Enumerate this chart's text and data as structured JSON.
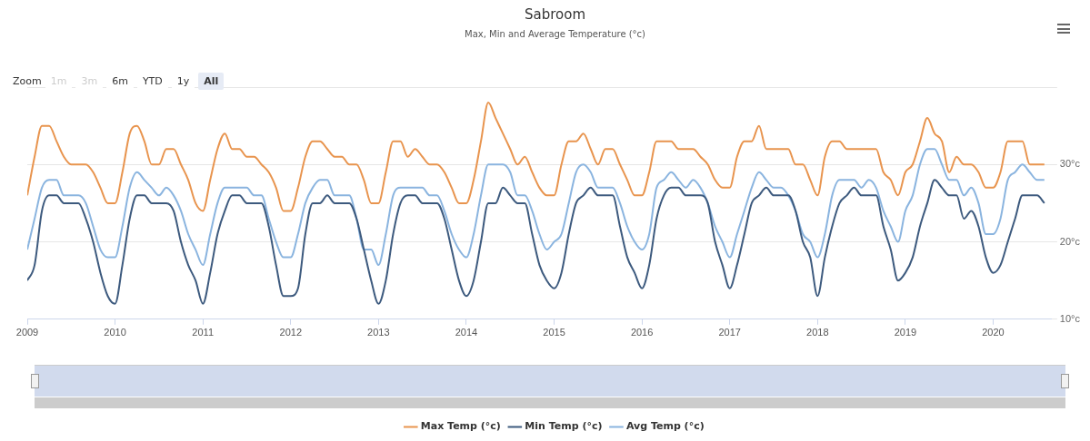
{
  "chart_data": {
    "type": "line",
    "title": "Sabroom",
    "subtitle": "Max, Min and Average Temperature (°c)",
    "annotations": [
      "Zoom",
      "1m",
      "3m",
      "6m",
      "YTD",
      "1y",
      "All"
    ],
    "x": [
      "2009-01",
      "2009-02",
      "2009-03",
      "2009-04",
      "2009-05",
      "2009-06",
      "2009-07",
      "2009-08",
      "2009-09",
      "2009-10",
      "2009-11",
      "2009-12",
      "2010-01",
      "2010-02",
      "2010-03",
      "2010-04",
      "2010-05",
      "2010-06",
      "2010-07",
      "2010-08",
      "2010-09",
      "2010-10",
      "2010-11",
      "2010-12",
      "2011-01",
      "2011-02",
      "2011-03",
      "2011-04",
      "2011-05",
      "2011-06",
      "2011-07",
      "2011-08",
      "2011-09",
      "2011-10",
      "2011-11",
      "2011-12",
      "2012-01",
      "2012-02",
      "2012-03",
      "2012-04",
      "2012-05",
      "2012-06",
      "2012-07",
      "2012-08",
      "2012-09",
      "2012-10",
      "2012-11",
      "2012-12",
      "2013-01",
      "2013-02",
      "2013-03",
      "2013-04",
      "2013-05",
      "2013-06",
      "2013-07",
      "2013-08",
      "2013-09",
      "2013-10",
      "2013-11",
      "2013-12",
      "2014-01",
      "2014-02",
      "2014-03",
      "2014-04",
      "2014-05",
      "2014-06",
      "2014-07",
      "2014-08",
      "2014-09",
      "2014-10",
      "2014-11",
      "2014-12",
      "2015-01",
      "2015-02",
      "2015-03",
      "2015-04",
      "2015-05",
      "2015-06",
      "2015-07",
      "2015-08",
      "2015-09",
      "2015-10",
      "2015-11",
      "2015-12",
      "2016-01",
      "2016-02",
      "2016-03",
      "2016-04",
      "2016-05",
      "2016-06",
      "2016-07",
      "2016-08",
      "2016-09",
      "2016-10",
      "2016-11",
      "2016-12",
      "2017-01",
      "2017-02",
      "2017-03",
      "2017-04",
      "2017-05",
      "2017-06",
      "2017-07",
      "2017-08",
      "2017-09",
      "2017-10",
      "2017-11",
      "2017-12",
      "2018-01",
      "2018-02",
      "2018-03",
      "2018-04",
      "2018-05",
      "2018-06",
      "2018-07",
      "2018-08",
      "2018-09",
      "2018-10",
      "2018-11",
      "2018-12",
      "2019-01",
      "2019-02",
      "2019-03",
      "2019-04",
      "2019-05",
      "2019-06",
      "2019-07",
      "2019-08",
      "2019-09",
      "2019-10",
      "2019-11",
      "2019-12",
      "2020-01",
      "2020-02",
      "2020-03",
      "2020-04",
      "2020-05",
      "2020-06",
      "2020-07",
      "2020-08"
    ],
    "series": [
      {
        "name": "Max Temp (°c)",
        "color": "#e8944e",
        "values": [
          26,
          31,
          35,
          35,
          33,
          31,
          30,
          30,
          30,
          29,
          27,
          25,
          25,
          29,
          34,
          35,
          33,
          30,
          30,
          32,
          32,
          30,
          28,
          25,
          24,
          28,
          32,
          34,
          32,
          32,
          31,
          31,
          30,
          29,
          27,
          24,
          24,
          27,
          31,
          33,
          33,
          32,
          31,
          31,
          30,
          30,
          28,
          25,
          25,
          29,
          33,
          33,
          31,
          32,
          31,
          30,
          30,
          29,
          27,
          25,
          25,
          28,
          33,
          38,
          36,
          34,
          32,
          30,
          31,
          29,
          27,
          26,
          26,
          30,
          33,
          33,
          34,
          32,
          30,
          32,
          32,
          30,
          28,
          26,
          26,
          29,
          33,
          33,
          33,
          32,
          32,
          32,
          31,
          30,
          28,
          27,
          27,
          31,
          33,
          33,
          35,
          32,
          32,
          32,
          32,
          30,
          30,
          28,
          26,
          31,
          33,
          33,
          32,
          32,
          32,
          32,
          32,
          29,
          28,
          26,
          29,
          30,
          33,
          36,
          34,
          33,
          29,
          31,
          30,
          30,
          29,
          27,
          27,
          29,
          33,
          33,
          33,
          30,
          30,
          30
        ]
      },
      {
        "name": "Min Temp (°c)",
        "color": "#3d5a7e",
        "values": [
          15,
          17,
          24,
          26,
          26,
          25,
          25,
          25,
          23,
          20,
          16,
          13,
          12,
          17,
          23,
          26,
          26,
          25,
          25,
          25,
          24,
          20,
          17,
          15,
          12,
          16,
          21,
          24,
          26,
          26,
          25,
          25,
          25,
          22,
          17,
          13,
          13,
          14,
          21,
          25,
          25,
          26,
          25,
          25,
          25,
          23,
          19,
          15,
          12,
          15,
          21,
          25,
          26,
          26,
          25,
          25,
          25,
          23,
          19,
          15,
          13,
          15,
          20,
          25,
          25,
          27,
          26,
          25,
          25,
          21,
          17,
          15,
          14,
          16,
          21,
          25,
          26,
          27,
          26,
          26,
          26,
          22,
          18,
          16,
          14,
          17,
          23,
          26,
          27,
          27,
          26,
          26,
          26,
          25,
          20,
          17,
          14,
          17,
          21,
          25,
          26,
          27,
          26,
          26,
          26,
          24,
          20,
          18,
          13,
          18,
          22,
          25,
          26,
          27,
          26,
          26,
          26,
          22,
          19,
          15,
          16,
          18,
          22,
          25,
          28,
          27,
          26,
          26,
          23,
          24,
          22,
          18,
          16,
          17,
          20,
          23,
          26,
          26,
          26,
          25
        ]
      },
      {
        "name": "Avg Temp (°c)",
        "color": "#8ab4df",
        "values": [
          19,
          23,
          27,
          28,
          28,
          26,
          26,
          26,
          25,
          22,
          19,
          18,
          18,
          22,
          27,
          29,
          28,
          27,
          26,
          27,
          26,
          24,
          21,
          19,
          17,
          21,
          25,
          27,
          27,
          27,
          27,
          26,
          26,
          23,
          20,
          18,
          18,
          21,
          25,
          27,
          28,
          28,
          26,
          26,
          26,
          23,
          19,
          19,
          17,
          21,
          26,
          27,
          27,
          27,
          27,
          26,
          26,
          24,
          21,
          19,
          18,
          21,
          26,
          30,
          30,
          30,
          29,
          26,
          26,
          24,
          21,
          19,
          20,
          21,
          25,
          29,
          30,
          29,
          27,
          27,
          27,
          25,
          22,
          20,
          19,
          21,
          27,
          28,
          29,
          28,
          27,
          28,
          27,
          25,
          22,
          20,
          18,
          21,
          24,
          27,
          29,
          28,
          27,
          27,
          26,
          24,
          21,
          20,
          18,
          21,
          26,
          28,
          28,
          28,
          27,
          28,
          27,
          24,
          22,
          20,
          24,
          26,
          30,
          32,
          32,
          30,
          28,
          28,
          26,
          27,
          25,
          21,
          21,
          23,
          28,
          29,
          30,
          29,
          28,
          28
        ]
      }
    ],
    "xlim": [
      "2009-01",
      "2020-09"
    ],
    "xticks": [
      "2009",
      "2010",
      "2011",
      "2012",
      "2013",
      "2014",
      "2015",
      "2016",
      "2017",
      "2018",
      "2019",
      "2020"
    ],
    "ylim": [
      10,
      40
    ],
    "yticks": [
      {
        "value": 10,
        "label": "10°c"
      },
      {
        "value": 20,
        "label": "20°c"
      },
      {
        "value": 30,
        "label": "30°c"
      },
      {
        "value": 40,
        "label": null
      }
    ],
    "grid": "y",
    "legend": "bottom",
    "marker": "none",
    "line_style": "solid"
  }
}
